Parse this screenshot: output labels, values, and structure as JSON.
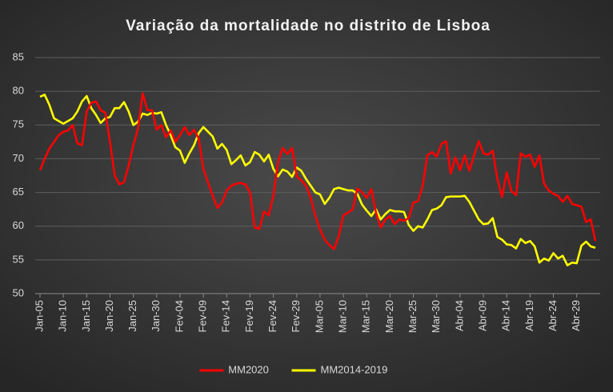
{
  "chart_data": {
    "type": "line",
    "title": "Variação da mortalidade no distrito de Lisboa",
    "categories": [
      "Jan-05",
      null,
      null,
      null,
      null,
      "Jan-10",
      null,
      null,
      null,
      null,
      "Jan-15",
      null,
      null,
      null,
      null,
      "Jan-20",
      null,
      null,
      null,
      null,
      "Jan-25",
      null,
      null,
      null,
      null,
      "Jan-30",
      null,
      null,
      null,
      null,
      "Fev-04",
      null,
      null,
      null,
      null,
      "Fev-09",
      null,
      null,
      null,
      null,
      "Fev-14",
      null,
      null,
      null,
      null,
      "Fev-19",
      null,
      null,
      null,
      null,
      "Fev-24",
      null,
      null,
      null,
      null,
      "Fev-29",
      null,
      null,
      null,
      null,
      "Mar-05",
      null,
      null,
      null,
      null,
      "Mar-10",
      null,
      null,
      null,
      null,
      "Mar-15",
      null,
      null,
      null,
      null,
      "Mar-20",
      null,
      null,
      null,
      null,
      "Mar-25",
      null,
      null,
      null,
      null,
      "Mar-30",
      null,
      null,
      null,
      null,
      "Abr-04",
      null,
      null,
      null,
      null,
      "Abr-09",
      null,
      null,
      null,
      null,
      "Abr-14",
      null,
      null,
      null,
      null,
      "Abr-19",
      null,
      null,
      null,
      null,
      "Abr-24",
      null,
      null,
      null,
      null,
      "Abr-29",
      null,
      null,
      null,
      null
    ],
    "series": [
      {
        "name": "MM2020",
        "color": "#ff0000",
        "values": [
          68.3,
          70,
          71.5,
          72.5,
          73.5,
          74,
          74.2,
          75,
          72.3,
          72.0,
          77,
          78.3,
          78.5,
          77.2,
          76.8,
          72.5,
          67.5,
          66.2,
          66.5,
          69,
          72,
          74.5,
          79.7,
          77.2,
          77.2,
          74.3,
          75,
          73.2,
          74.2,
          72.5,
          73.5,
          74.7,
          73.5,
          74.3,
          73,
          68.5,
          66.5,
          64.5,
          62.7,
          63.5,
          65.3,
          66,
          66.3,
          66.4,
          66.2,
          65,
          59.8,
          59.6,
          62.2,
          61.6,
          64.5,
          69.5,
          71.6,
          70.7,
          71.6,
          67.4,
          66.8,
          66,
          64.2,
          61.5,
          59.5,
          58,
          57.2,
          56.6,
          58.5,
          61.6,
          62,
          62.5,
          65.6,
          65,
          64.2,
          65.5,
          62,
          59.8,
          61,
          61.5,
          60.3,
          61,
          60.8,
          61.2,
          63.5,
          63.7,
          66,
          70.5,
          71,
          70.3,
          72.2,
          72.6,
          67.8,
          70.2,
          68.3,
          70.5,
          68.2,
          70.5,
          72.6,
          70.8,
          70.6,
          71.2,
          67,
          64.3,
          68,
          65.2,
          64.6,
          70.8,
          70.3,
          70.6,
          68.8,
          70.5,
          66.3,
          65.3,
          64.8,
          64.5,
          63.6,
          64.5,
          63.3,
          63.1,
          62.9,
          60.6,
          61,
          57.8
        ]
      },
      {
        "name": "MM2014-2019",
        "color": "#ffff00",
        "values": [
          79.2,
          79.5,
          78,
          76,
          75.6,
          75.2,
          75.6,
          76,
          77,
          78.5,
          79.3,
          77.5,
          76.5,
          75.3,
          76,
          76.2,
          77.5,
          77.5,
          78.4,
          77,
          75,
          75.5,
          76.7,
          76.5,
          76.8,
          76.7,
          76.9,
          75,
          73.5,
          71.7,
          71.2,
          69.4,
          70.8,
          72,
          73.8,
          74.7,
          74,
          73.3,
          71.5,
          72.2,
          71.3,
          69.2,
          69.8,
          70.5,
          69,
          69.5,
          71,
          70.6,
          69.6,
          70.6,
          68.5,
          67.4,
          68.4,
          68.1,
          67.3,
          68.7,
          68.2,
          67,
          66,
          65,
          64.7,
          63.3,
          64.2,
          65.5,
          65.7,
          65.5,
          65.3,
          65.3,
          64.8,
          63.2,
          62.3,
          61.5,
          62.5,
          61,
          61.8,
          62.4,
          62.2,
          62.2,
          62.1,
          60.2,
          59.3,
          60,
          59.8,
          61,
          62.4,
          62.6,
          63.1,
          64.3,
          64.4,
          64.4,
          64.4,
          64.5,
          63.6,
          62.3,
          61,
          60.3,
          60.4,
          61.2,
          58.4,
          58,
          57.3,
          57.2,
          56.7,
          58.1,
          57.5,
          57.8,
          57,
          54.6,
          55.2,
          54.9,
          56,
          55.2,
          55.6,
          54.2,
          54.6,
          54.5,
          57.1,
          57.7,
          57,
          56.8
        ]
      }
    ],
    "ylim": [
      50,
      85
    ],
    "yticks": [
      50,
      55,
      60,
      65,
      70,
      75,
      80,
      85
    ],
    "grid": true,
    "legend": "bottom"
  }
}
